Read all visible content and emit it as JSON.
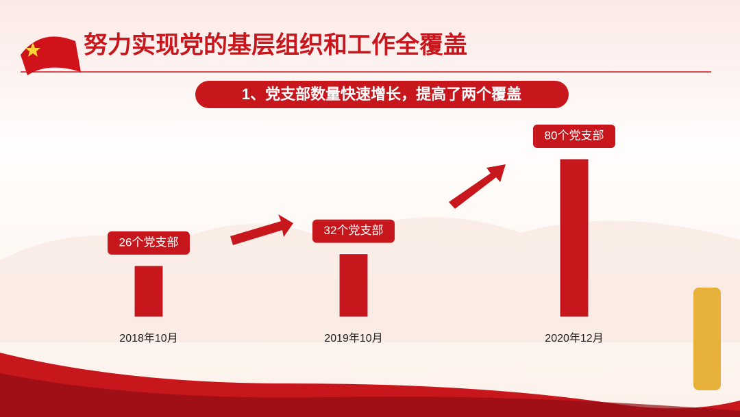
{
  "chart_data": {
    "type": "bar",
    "title": "努力实现党的基层组织和工作全覆盖",
    "subtitle": "1、党支部数量快速增长，提高了两个覆盖",
    "categories": [
      "2018年10月",
      "2019年10月",
      "2020年12月"
    ],
    "values": [
      26,
      32,
      80
    ],
    "value_labels": [
      "26个党支部",
      "32个党支部",
      "80个党支部"
    ],
    "color": "#c8161d"
  }
}
